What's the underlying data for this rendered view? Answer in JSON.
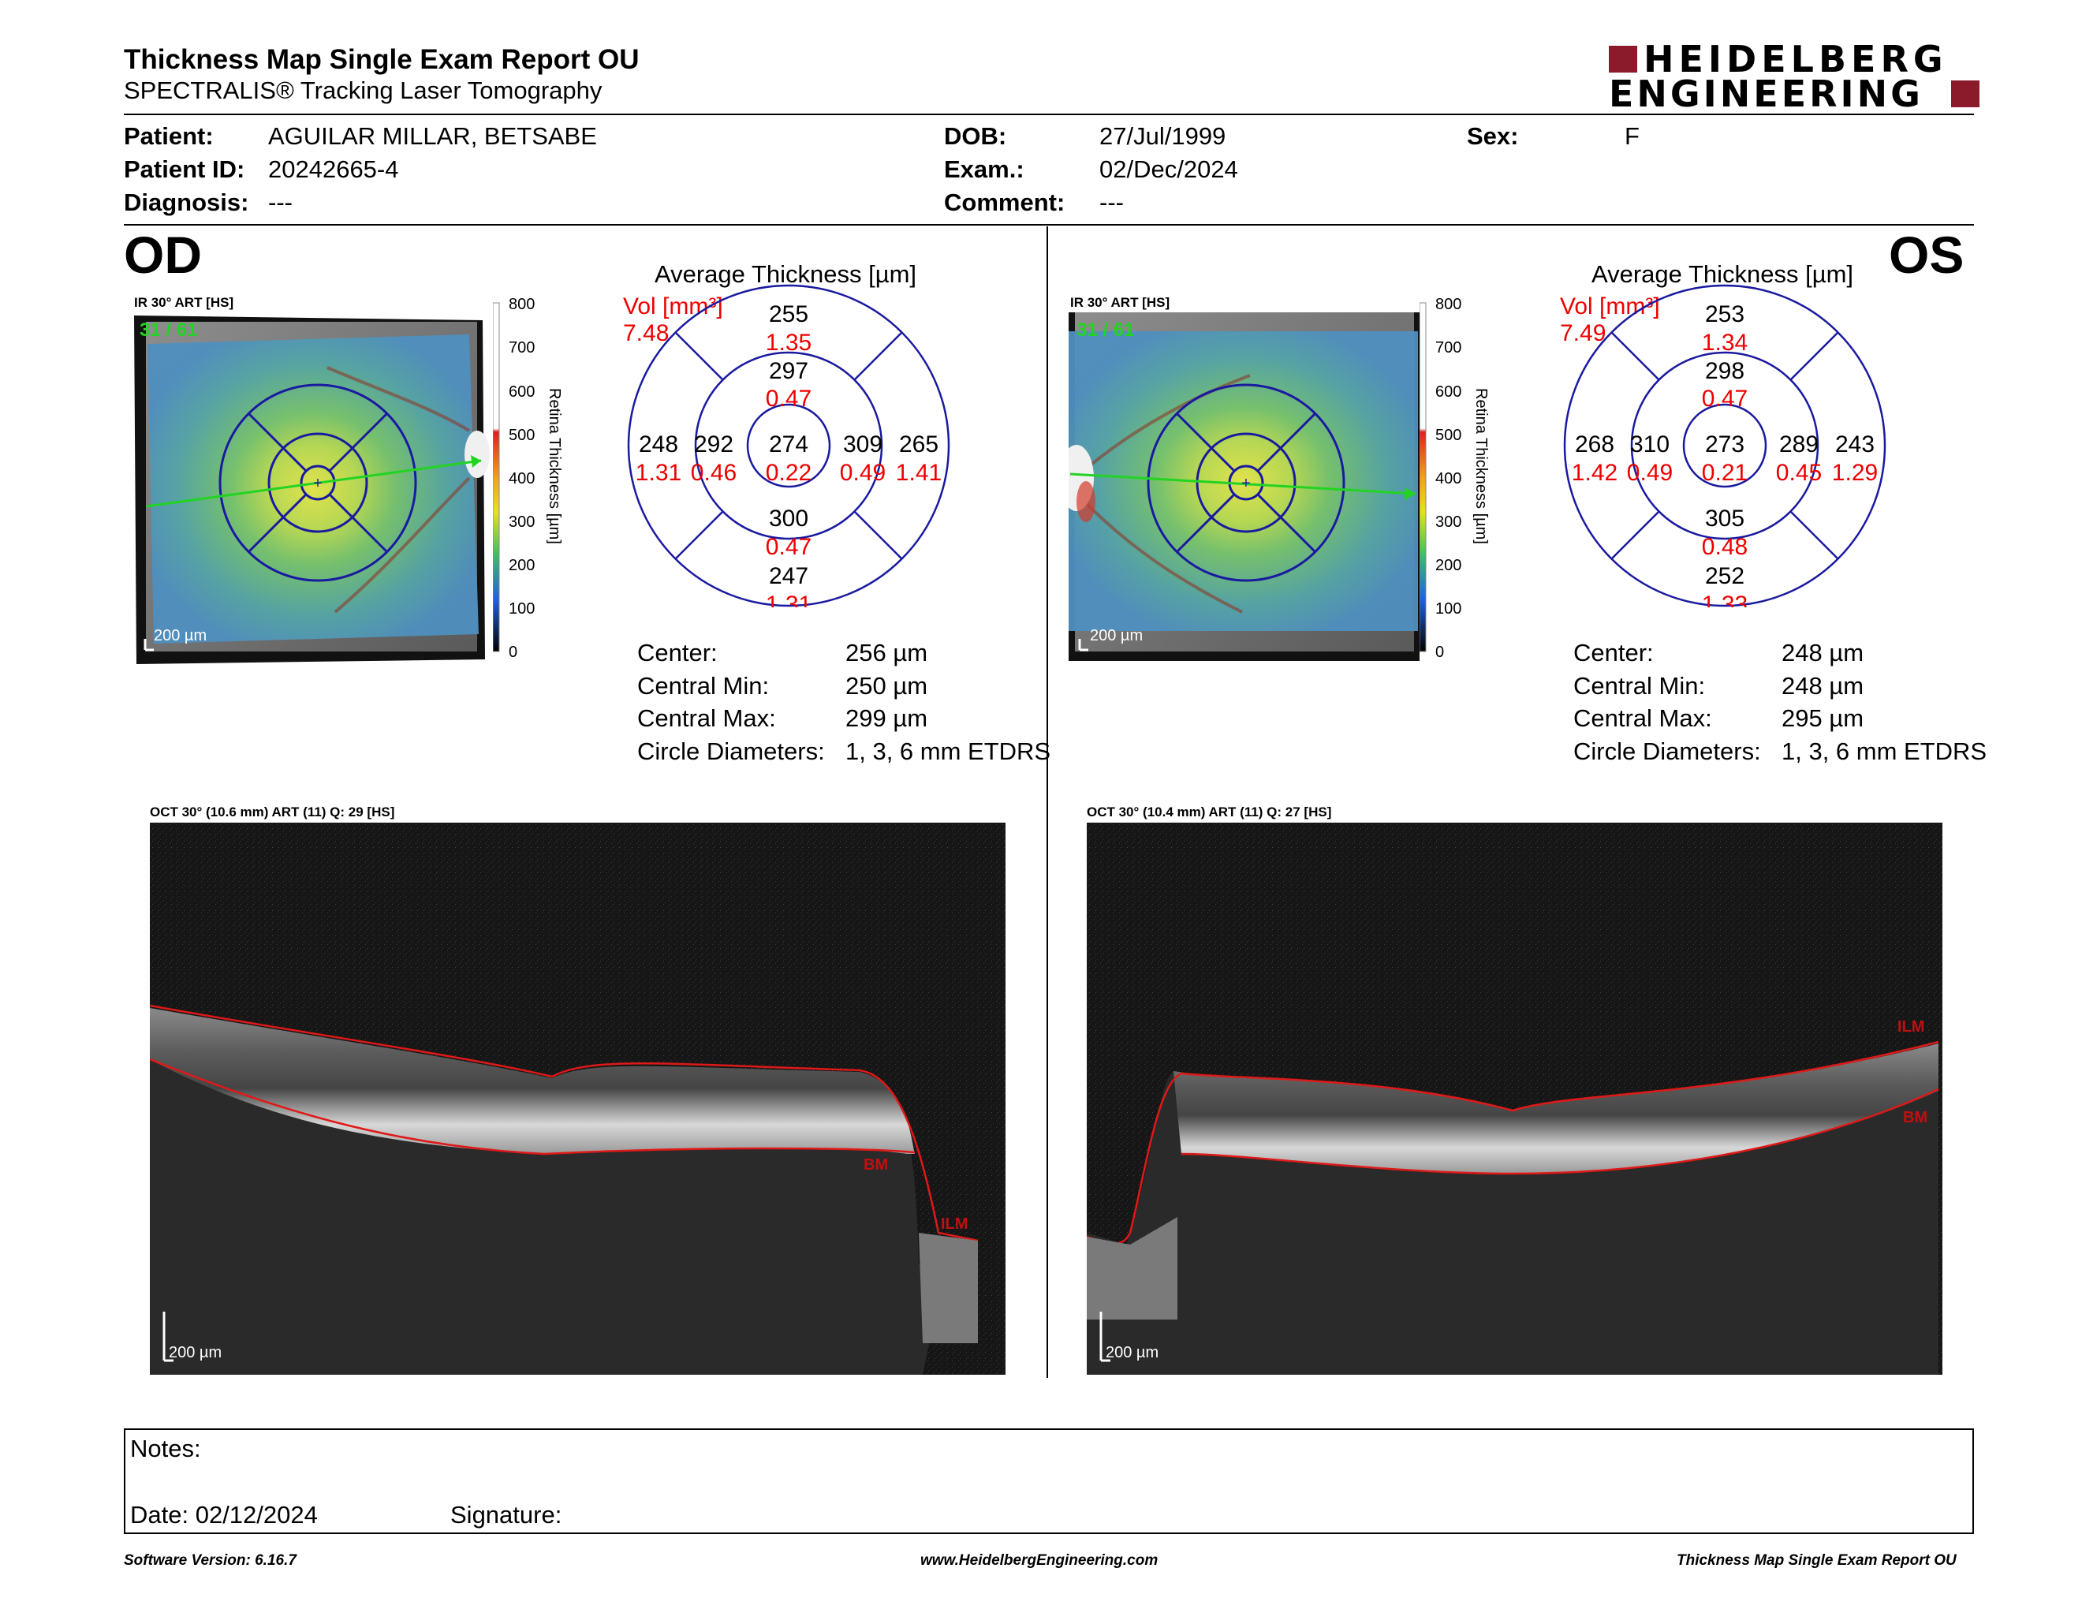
{
  "header": {
    "title": "Thickness Map Single Exam Report OU",
    "subtitle": "SPECTRALIS® Tracking Laser Tomography",
    "logo_line1": "HEIDELBERG",
    "logo_line2": "ENGINEERING",
    "brand_color": "#8b1a2b"
  },
  "patient": {
    "patient_label": "Patient:",
    "patient_value": "AGUILAR MILLAR, BETSABE",
    "id_label": "Patient ID:",
    "id_value": "20242665-4",
    "diagnosis_label": "Diagnosis:",
    "diagnosis_value": "---",
    "dob_label": "DOB:",
    "dob_value": "27/Jul/1999",
    "exam_label": "Exam.:",
    "exam_value": "02/Dec/2024",
    "comment_label": "Comment:",
    "comment_value": "---",
    "sex_label": "Sex:",
    "sex_value": "F"
  },
  "colorbar": {
    "ticks": [
      "800",
      "700",
      "600",
      "500",
      "400",
      "300",
      "200",
      "100",
      "0"
    ],
    "title": "Retina Thickness [µm]"
  },
  "od": {
    "eye": "OD",
    "ir_label": "IR 30° ART [HS]",
    "ir_overlay": "31 / 61",
    "scale": "200 µm",
    "etdrs_title": "Average Thickness [µm]",
    "vol_label": "Vol [mm³]",
    "vol_total": "7.48",
    "sectors": {
      "outer_sup": {
        "t": "255",
        "v": "1.35"
      },
      "inner_sup": {
        "t": "297",
        "v": "0.47"
      },
      "outer_left": {
        "t": "248",
        "v": "1.31"
      },
      "inner_left": {
        "t": "292",
        "v": "0.46"
      },
      "center": {
        "t": "274",
        "v": "0.22"
      },
      "inner_right": {
        "t": "309",
        "v": "0.49"
      },
      "outer_right": {
        "t": "265",
        "v": "1.41"
      },
      "inner_inf": {
        "t": "300",
        "v": "0.47"
      },
      "outer_inf": {
        "t": "247",
        "v": "1.31"
      }
    },
    "stats": [
      {
        "label": "Center:",
        "value": "256 µm"
      },
      {
        "label": "Central Min:",
        "value": "250 µm"
      },
      {
        "label": "Central Max:",
        "value": "299 µm"
      },
      {
        "label": "Circle Diameters:",
        "value": "1, 3, 6 mm ETDRS"
      }
    ],
    "oct_label": "OCT 30° (10.6 mm) ART (11) Q: 29 [HS]",
    "oct_scale": "200 µm",
    "bm_label": "BM",
    "ilm_label": "ILM"
  },
  "os": {
    "eye": "OS",
    "ir_label": "IR 30° ART [HS]",
    "ir_overlay": "31 / 61",
    "scale": "200 µm",
    "etdrs_title": "Average Thickness [µm]",
    "vol_label": "Vol [mm³]",
    "vol_total": "7.49",
    "sectors": {
      "outer_sup": {
        "t": "253",
        "v": "1.34"
      },
      "inner_sup": {
        "t": "298",
        "v": "0.47"
      },
      "outer_left": {
        "t": "268",
        "v": "1.42"
      },
      "inner_left": {
        "t": "310",
        "v": "0.49"
      },
      "center": {
        "t": "273",
        "v": "0.21"
      },
      "inner_right": {
        "t": "289",
        "v": "0.45"
      },
      "outer_right": {
        "t": "243",
        "v": "1.29"
      },
      "inner_inf": {
        "t": "305",
        "v": "0.48"
      },
      "outer_inf": {
        "t": "252",
        "v": "1.33"
      }
    },
    "stats": [
      {
        "label": "Center:",
        "value": "248 µm"
      },
      {
        "label": "Central Min:",
        "value": "248 µm"
      },
      {
        "label": "Central Max:",
        "value": "295 µm"
      },
      {
        "label": "Circle Diameters:",
        "value": "1, 3, 6 mm ETDRS"
      }
    ],
    "oct_label": "OCT 30° (10.4 mm) ART (11) Q: 27 [HS]",
    "oct_scale": "200 µm",
    "bm_label": "BM",
    "ilm_label": "ILM"
  },
  "notes": {
    "notes_label": "Notes:",
    "date_label": "Date: 02/12/2024",
    "signature_label": "Signature:"
  },
  "footer": {
    "version": "Software Version: 6.16.7",
    "url": "www.HeidelbergEngineering.com",
    "report": "Thickness Map Single Exam Report OU"
  }
}
